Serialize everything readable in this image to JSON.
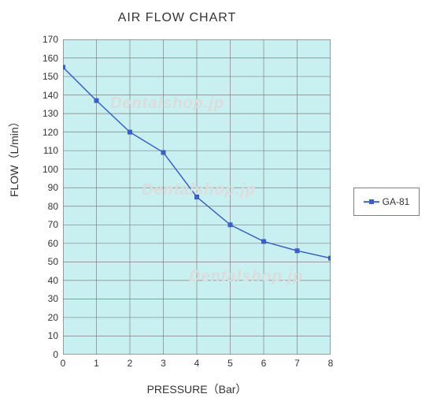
{
  "chart": {
    "type": "line",
    "title": "AIR FLOW CHART",
    "title_fontsize": 16,
    "xlabel": "PRESSURE（Bar）",
    "ylabel": "FLOW（L/min）",
    "label_fontsize": 14,
    "tick_fontsize": 12,
    "background_color": "#c9f0f0",
    "grid_color": "#808080",
    "outer_border_color": "#808080",
    "axis_label_color": "#333333",
    "tick_label_color": "#333333",
    "xlim": [
      0,
      8
    ],
    "ylim": [
      0,
      170
    ],
    "xtick_step": 1,
    "ytick_step": 10,
    "xticks": [
      0,
      1,
      2,
      3,
      4,
      5,
      6,
      7,
      8
    ],
    "yticks": [
      0,
      10,
      20,
      30,
      40,
      50,
      60,
      70,
      80,
      90,
      100,
      110,
      120,
      130,
      140,
      150,
      160,
      170
    ],
    "series": [
      {
        "name": "GA-81",
        "x": [
          0,
          1,
          2,
          3,
          4,
          5,
          6,
          7,
          8
        ],
        "y": [
          155,
          137,
          120,
          109,
          85,
          70,
          61,
          56,
          52
        ],
        "line_color": "#3a5fcd",
        "marker": "square",
        "marker_size": 6,
        "marker_color": "#3a5fcd",
        "line_width": 1.5
      }
    ],
    "legend": {
      "position": "right-middle",
      "border_color": "#808080",
      "background_color": "#ffffff",
      "fontsize": 12
    },
    "watermark": {
      "text": "Dentalshop.jp",
      "color": "#dcdcdc",
      "fontsize": 20
    }
  }
}
